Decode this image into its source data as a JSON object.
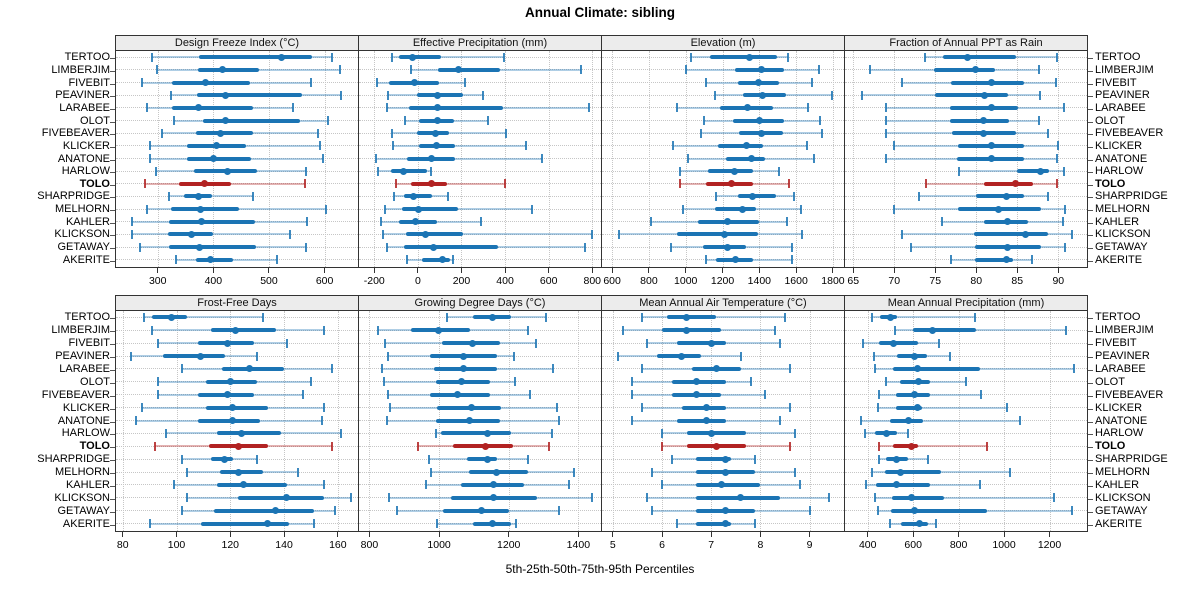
{
  "colors": {
    "series": "#1b74b4",
    "series_light": "rgba(27,116,180,0.35)",
    "highlight": "#b22222",
    "highlight_light": "rgba(178,34,34,0.35)",
    "grid": "#c6c6c6",
    "strip_bg": "#ececec",
    "border": "#333333"
  },
  "chart_data": {
    "type": "percentile-dotplot",
    "title": "Annual Climate: sibling",
    "caption": "5th-25th-50th-75th-95th Percentiles",
    "percentiles": [
      5,
      25,
      50,
      75,
      95
    ],
    "layout": {
      "rows": 2,
      "cols": 4,
      "legend_position": "none",
      "grid": "dotted"
    },
    "highlight_site": "TOLO",
    "sites": [
      "TERTOO",
      "LIMBERJIM",
      "FIVEBIT",
      "PEAVINER",
      "LARABEE",
      "OLOT",
      "FIVEBEAVER",
      "KLICKER",
      "ANATONE",
      "HARLOW",
      "TOLO",
      "SHARPRIDGE",
      "MELHORN",
      "KAHLER",
      "KLICKSON",
      "GETAWAY",
      "AKERITE"
    ],
    "panels": [
      {
        "title": "Design Freeze Index (°C)",
        "xlim": [
          225,
          660
        ],
        "ticks": [
          300,
          400,
          500,
          600
        ],
        "values": [
          [
            289,
            375,
            523,
            578,
            613
          ],
          [
            298,
            372,
            416,
            482,
            628
          ],
          [
            271,
            326,
            386,
            465,
            575
          ],
          [
            324,
            371,
            421,
            559,
            629
          ],
          [
            281,
            325,
            374,
            471,
            544
          ],
          [
            329,
            382,
            421,
            556,
            606
          ],
          [
            307,
            368,
            412,
            471,
            588
          ],
          [
            287,
            353,
            405,
            459,
            591
          ],
          [
            287,
            352,
            400,
            468,
            597
          ],
          [
            297,
            365,
            425,
            479,
            566
          ],
          [
            278,
            338,
            384,
            432,
            565
          ],
          [
            321,
            348,
            374,
            397,
            471
          ],
          [
            281,
            324,
            376,
            447,
            603
          ],
          [
            254,
            321,
            378,
            474,
            568
          ],
          [
            254,
            319,
            360,
            400,
            538
          ],
          [
            268,
            321,
            375,
            476,
            566
          ],
          [
            332,
            368,
            394,
            435,
            515
          ]
        ]
      },
      {
        "title": "Effective Precipitation (mm)",
        "xlim": [
          -270,
          840
        ],
        "ticks": [
          -200,
          0,
          200,
          400,
          600,
          800
        ],
        "values": [
          [
            -120,
            -86,
            -24,
            108,
            395
          ],
          [
            -33,
            92,
            186,
            376,
            747
          ],
          [
            -189,
            -132,
            -15,
            95,
            217
          ],
          [
            -139,
            -6,
            91,
            209,
            300
          ],
          [
            -142,
            -41,
            88,
            391,
            785
          ],
          [
            -59,
            5,
            92,
            164,
            323
          ],
          [
            -120,
            -3,
            80,
            141,
            406
          ],
          [
            -112,
            5,
            85,
            171,
            497
          ],
          [
            -192,
            -48,
            61,
            171,
            570
          ],
          [
            -185,
            -124,
            -68,
            42,
            58
          ],
          [
            -101,
            -33,
            61,
            133,
            401
          ],
          [
            -109,
            -64,
            -21,
            65,
            136
          ],
          [
            -152,
            -71,
            5,
            186,
            524
          ],
          [
            -170,
            -86,
            -11,
            88,
            288
          ],
          [
            -158,
            -56,
            35,
            209,
            800
          ],
          [
            -142,
            -64,
            73,
            368,
            767
          ],
          [
            -52,
            20,
            111,
            148,
            160
          ]
        ]
      },
      {
        "title": "Elevation (m)",
        "xlim": [
          545,
          1860
        ],
        "ticks": [
          600,
          800,
          1000,
          1200,
          1400,
          1600,
          1800
        ],
        "values": [
          [
            1031,
            1130,
            1346,
            1498,
            1558
          ],
          [
            1001,
            1265,
            1412,
            1534,
            1723
          ],
          [
            1112,
            1283,
            1396,
            1508,
            1687
          ],
          [
            1157,
            1310,
            1418,
            1543,
            1795
          ],
          [
            950,
            1184,
            1333,
            1472,
            1666
          ],
          [
            1100,
            1256,
            1403,
            1534,
            1727
          ],
          [
            1085,
            1292,
            1409,
            1531,
            1738
          ],
          [
            929,
            1175,
            1330,
            1420,
            1660
          ],
          [
            1013,
            1220,
            1360,
            1430,
            1696
          ],
          [
            968,
            1121,
            1265,
            1364,
            1508
          ],
          [
            968,
            1112,
            1247,
            1364,
            1561
          ],
          [
            1162,
            1283,
            1364,
            1490,
            1588
          ],
          [
            986,
            1157,
            1310,
            1380,
            1624
          ],
          [
            810,
            1067,
            1229,
            1400,
            1552
          ],
          [
            636,
            950,
            1211,
            1391,
            1633
          ],
          [
            918,
            1094,
            1229,
            1328,
            1580
          ],
          [
            1112,
            1166,
            1270,
            1364,
            1576
          ]
        ]
      },
      {
        "title": "Fraction of Annual PPT as Rain",
        "xlim": [
          64,
          93.5
        ],
        "ticks": [
          65,
          70,
          75,
          80,
          85,
          90
        ],
        "values": [
          [
            73.8,
            76.0,
            78.9,
            84.8,
            89.8
          ],
          [
            67.1,
            74.9,
            79.9,
            82.3,
            87.7
          ],
          [
            71.0,
            76.9,
            81.8,
            85.8,
            89.7
          ],
          [
            66.1,
            75.0,
            81.0,
            83.9,
            87.8
          ],
          [
            69.0,
            76.8,
            81.9,
            85.1,
            90.7
          ],
          [
            69.0,
            76.8,
            80.9,
            84.0,
            87.7
          ],
          [
            69.0,
            77.1,
            80.9,
            84.8,
            88.7
          ],
          [
            70.0,
            77.8,
            81.9,
            85.8,
            90.0
          ],
          [
            69.0,
            77.7,
            81.8,
            85.8,
            89.8
          ],
          [
            77.9,
            85.0,
            87.8,
            88.9,
            90.7
          ],
          [
            73.9,
            81.0,
            84.8,
            86.9,
            89.8
          ],
          [
            73.0,
            80.0,
            83.7,
            85.8,
            88.8
          ],
          [
            70.0,
            77.8,
            82.7,
            87.9,
            90.8
          ],
          [
            75.8,
            81.0,
            83.8,
            86.3,
            90.6
          ],
          [
            71.0,
            79.7,
            86.0,
            88.7,
            91.7
          ],
          [
            72.1,
            79.9,
            83.8,
            87.9,
            90.8
          ],
          [
            76.9,
            79.8,
            83.7,
            84.5,
            86.8
          ]
        ]
      },
      {
        "title": "Frost-Free Days",
        "xlim": [
          77.5,
          167.5
        ],
        "ticks": [
          80,
          100,
          120,
          140,
          160
        ],
        "values": [
          [
            88,
            91,
            98,
            104,
            132
          ],
          [
            91,
            113,
            122,
            137,
            155
          ],
          [
            93,
            108,
            119,
            129,
            141
          ],
          [
            83,
            95,
            109,
            118,
            130
          ],
          [
            102,
            117,
            127,
            140,
            158
          ],
          [
            93,
            111,
            120,
            130,
            150
          ],
          [
            93,
            108,
            119,
            129,
            147
          ],
          [
            87,
            111,
            121,
            134,
            155
          ],
          [
            85,
            108,
            121,
            131,
            154
          ],
          [
            96,
            115,
            124,
            139,
            161
          ],
          [
            92,
            112,
            123,
            134,
            158
          ],
          [
            102,
            113,
            118,
            121,
            130
          ],
          [
            104,
            116,
            123,
            132,
            145
          ],
          [
            99,
            115,
            125,
            141,
            155
          ],
          [
            104,
            123,
            141,
            155,
            165
          ],
          [
            102,
            114,
            137,
            151,
            159
          ],
          [
            90,
            109,
            134,
            142,
            151
          ]
        ]
      },
      {
        "title": "Growing Degree Days (°C)",
        "xlim": [
          770,
          1465
        ],
        "ticks": [
          800,
          1000,
          1200,
          1400
        ],
        "values": [
          [
            1024,
            1098,
            1152,
            1207,
            1307
          ],
          [
            826,
            920,
            997,
            1090,
            1254
          ],
          [
            845,
            1007,
            1095,
            1174,
            1279
          ],
          [
            854,
            974,
            1069,
            1165,
            1216
          ],
          [
            835,
            984,
            1071,
            1166,
            1326
          ],
          [
            841,
            990,
            1064,
            1147,
            1219
          ],
          [
            854,
            974,
            1054,
            1147,
            1260
          ],
          [
            860,
            993,
            1092,
            1178,
            1338
          ],
          [
            850,
            990,
            1086,
            1174,
            1343
          ],
          [
            990,
            1005,
            1140,
            1206,
            1324
          ],
          [
            940,
            1041,
            1133,
            1212,
            1317
          ],
          [
            971,
            1079,
            1140,
            1165,
            1254
          ],
          [
            978,
            1086,
            1165,
            1254,
            1387
          ],
          [
            962,
            1064,
            1155,
            1245,
            1374
          ],
          [
            857,
            1035,
            1155,
            1281,
            1438
          ],
          [
            879,
            1012,
            1121,
            1200,
            1345
          ],
          [
            995,
            1098,
            1152,
            1207,
            1222
          ]
        ]
      },
      {
        "title": "Mean Annual Air Temperature (°C)",
        "xlim": [
          4.78,
          9.7
        ],
        "ticks": [
          5,
          6,
          7,
          8,
          9
        ],
        "values": [
          [
            5.6,
            6.1,
            6.5,
            7.1,
            8.5
          ],
          [
            5.2,
            6.0,
            6.5,
            7.2,
            8.3
          ],
          [
            5.7,
            6.3,
            7.0,
            7.3,
            8.4
          ],
          [
            5.1,
            5.9,
            6.4,
            6.8,
            7.6
          ],
          [
            5.6,
            6.6,
            7.1,
            7.6,
            8.6
          ],
          [
            5.4,
            6.2,
            6.7,
            7.3,
            7.8
          ],
          [
            5.4,
            6.2,
            6.7,
            7.2,
            8.1
          ],
          [
            5.6,
            6.4,
            6.9,
            7.3,
            8.6
          ],
          [
            5.4,
            6.3,
            6.9,
            7.3,
            8.4
          ],
          [
            6.0,
            6.5,
            7.0,
            7.7,
            8.7
          ],
          [
            6.0,
            6.5,
            7.1,
            7.7,
            8.6
          ],
          [
            6.2,
            6.7,
            7.3,
            7.4,
            7.9
          ],
          [
            5.8,
            6.7,
            7.3,
            7.9,
            8.7
          ],
          [
            6.0,
            6.7,
            7.2,
            8.0,
            8.8
          ],
          [
            5.7,
            6.7,
            7.6,
            8.4,
            9.4
          ],
          [
            5.8,
            6.7,
            7.3,
            7.9,
            9.0
          ],
          [
            6.3,
            6.7,
            7.3,
            7.4,
            7.9
          ]
        ]
      },
      {
        "title": "Mean Annual Precipitation (mm)",
        "xlim": [
          300,
          1365
        ],
        "ticks": [
          400,
          600,
          800,
          1000,
          1200
        ],
        "values": [
          [
            419,
            452,
            499,
            531,
            874
          ],
          [
            521,
            601,
            685,
            877,
            1273
          ],
          [
            380,
            448,
            513,
            623,
            714
          ],
          [
            429,
            531,
            604,
            662,
            764
          ],
          [
            433,
            511,
            618,
            895,
            1306
          ],
          [
            481,
            543,
            623,
            674,
            831
          ],
          [
            448,
            525,
            604,
            676,
            899
          ],
          [
            444,
            525,
            618,
            637,
            1011
          ],
          [
            371,
            496,
            579,
            642,
            1069
          ],
          [
            390,
            433,
            481,
            531,
            579
          ],
          [
            448,
            511,
            594,
            623,
            924
          ],
          [
            448,
            481,
            525,
            579,
            666
          ],
          [
            419,
            477,
            546,
            724,
            1026
          ],
          [
            394,
            438,
            525,
            676,
            895
          ],
          [
            433,
            506,
            594,
            735,
            1219
          ],
          [
            444,
            502,
            604,
            924,
            1299
          ],
          [
            496,
            546,
            627,
            666,
            700
          ]
        ]
      }
    ]
  }
}
